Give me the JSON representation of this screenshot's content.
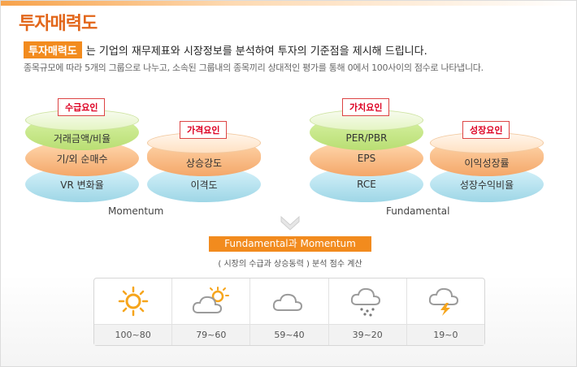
{
  "header": {
    "title": "투자매력도",
    "lead_tag": "투자매력도",
    "lead_text": "는 기업의 재무제표와 시장정보를 분석하여 투자의 기준점을 제시해 드립니다.",
    "sub_text": "종목규모에 따라 5개의 그룹으로 나누고, 소속된 그룹내의 종목끼리 상대적인 평가를 통해 0에서 100사이의 점수로 나타냅니다."
  },
  "momentum": {
    "label": "Momentum",
    "supply": {
      "badge": "수급요인",
      "layers": [
        "거래금액/비율",
        "기/외 순매수",
        "VR 변화율"
      ]
    },
    "price": {
      "badge": "가격요인",
      "layers": [
        "상승강도",
        "이격도"
      ]
    }
  },
  "fundamental": {
    "label": "Fundamental",
    "value": {
      "badge": "가치요인",
      "layers": [
        "PER/PBR",
        "EPS",
        "RCE"
      ]
    },
    "growth": {
      "badge": "성장요인",
      "layers": [
        "이익성장률",
        "성장수익비율"
      ]
    }
  },
  "summary": {
    "tag": "Fundamental과 Momentum",
    "sub": "( 시장의 수급과 상승동력 ) 분석 점수 계산"
  },
  "weather": [
    {
      "icon": "sun-icon",
      "range": "100~80"
    },
    {
      "icon": "sun-cloud-icon",
      "range": "79~60"
    },
    {
      "icon": "cloud-icon",
      "range": "59~40"
    },
    {
      "icon": "rain-cloud-icon",
      "range": "39~20"
    },
    {
      "icon": "storm-cloud-icon",
      "range": "19~0"
    }
  ],
  "colors": {
    "accent": "#f28b1e",
    "title": "#e2661a",
    "badge": "#d02222"
  }
}
